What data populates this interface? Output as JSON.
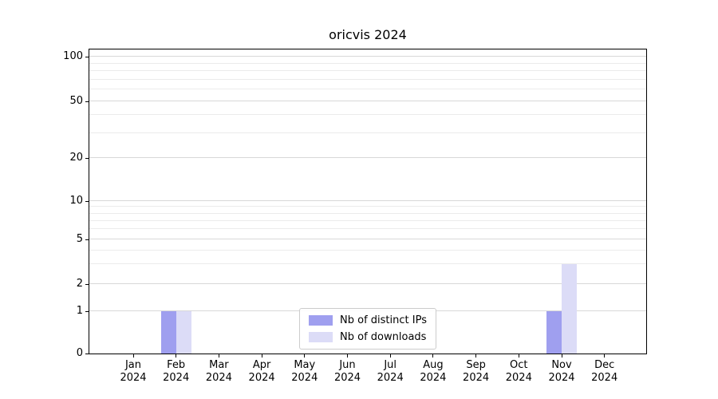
{
  "chart_data": {
    "type": "bar",
    "title": "oricvis 2024",
    "xlabel": "",
    "ylabel": "",
    "scale": "symlog",
    "grid": true,
    "legend_position": "lower center",
    "ylim": [
      0,
      110
    ],
    "yticks": [
      0,
      1,
      2,
      5,
      10,
      20,
      50,
      100
    ],
    "y_minor_ticks": [
      3,
      4,
      6,
      7,
      8,
      9,
      30,
      40,
      60,
      70,
      80,
      90
    ],
    "categories": [
      {
        "month": "Jan",
        "year": "2024"
      },
      {
        "month": "Feb",
        "year": "2024"
      },
      {
        "month": "Mar",
        "year": "2024"
      },
      {
        "month": "Apr",
        "year": "2024"
      },
      {
        "month": "May",
        "year": "2024"
      },
      {
        "month": "Jun",
        "year": "2024"
      },
      {
        "month": "Jul",
        "year": "2024"
      },
      {
        "month": "Aug",
        "year": "2024"
      },
      {
        "month": "Sep",
        "year": "2024"
      },
      {
        "month": "Oct",
        "year": "2024"
      },
      {
        "month": "Nov",
        "year": "2024"
      },
      {
        "month": "Dec",
        "year": "2024"
      }
    ],
    "series": [
      {
        "name": "Nb of distinct IPs",
        "color": "#9f9fef",
        "values": [
          0,
          1,
          0,
          0,
          0,
          0,
          0,
          0,
          0,
          0,
          1,
          0
        ]
      },
      {
        "name": "Nb of downloads",
        "color": "#dcdcf7",
        "values": [
          0,
          1,
          0,
          0,
          0,
          0,
          0,
          0,
          0,
          0,
          3,
          0
        ]
      }
    ]
  },
  "colors": {
    "axis": "#000000",
    "grid_major": "#d8d8d8",
    "grid_minor": "#ebebeb",
    "legend_border": "#cccccc"
  }
}
